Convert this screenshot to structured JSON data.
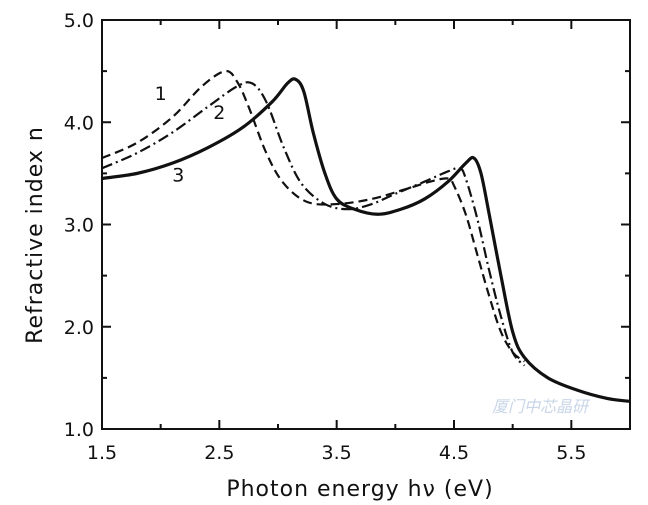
{
  "chart_data": {
    "type": "line",
    "title": "",
    "xlabel": "Photon energy hν (eV)",
    "ylabel": "Refractive index n",
    "xlim": [
      1.5,
      6.0
    ],
    "ylim": [
      1.0,
      5.0
    ],
    "x_ticks": [
      1.5,
      2.5,
      3.5,
      4.5,
      5.5
    ],
    "x_tick_labels": [
      "1.5",
      "2.5",
      "3.5",
      "4.5",
      "5.5"
    ],
    "y_ticks": [
      1.0,
      2.0,
      3.0,
      4.0,
      5.0
    ],
    "y_tick_labels": [
      "1.0",
      "2.0",
      "3.0",
      "4.0",
      "5.0"
    ],
    "grid": false,
    "series": [
      {
        "name": "1",
        "style": "dashed",
        "points": [
          [
            1.5,
            3.65
          ],
          [
            1.8,
            3.8
          ],
          [
            2.1,
            4.05
          ],
          [
            2.35,
            4.35
          ],
          [
            2.55,
            4.5
          ],
          [
            2.65,
            4.4
          ],
          [
            2.75,
            4.15
          ],
          [
            2.9,
            3.7
          ],
          [
            3.05,
            3.4
          ],
          [
            3.25,
            3.22
          ],
          [
            3.5,
            3.2
          ],
          [
            3.8,
            3.25
          ],
          [
            4.1,
            3.35
          ],
          [
            4.3,
            3.42
          ],
          [
            4.45,
            3.45
          ],
          [
            4.5,
            3.38
          ],
          [
            4.6,
            3.1
          ],
          [
            4.7,
            2.7
          ],
          [
            4.8,
            2.3
          ],
          [
            4.9,
            1.95
          ],
          [
            5.0,
            1.75
          ],
          [
            5.1,
            1.66
          ]
        ]
      },
      {
        "name": "2",
        "style": "dash-dot",
        "points": [
          [
            1.5,
            3.55
          ],
          [
            1.8,
            3.7
          ],
          [
            2.1,
            3.9
          ],
          [
            2.4,
            4.15
          ],
          [
            2.65,
            4.35
          ],
          [
            2.78,
            4.38
          ],
          [
            2.9,
            4.2
          ],
          [
            3.05,
            3.75
          ],
          [
            3.2,
            3.4
          ],
          [
            3.4,
            3.2
          ],
          [
            3.6,
            3.15
          ],
          [
            3.8,
            3.2
          ],
          [
            4.0,
            3.3
          ],
          [
            4.25,
            3.42
          ],
          [
            4.45,
            3.52
          ],
          [
            4.55,
            3.55
          ],
          [
            4.6,
            3.45
          ],
          [
            4.7,
            3.05
          ],
          [
            4.8,
            2.55
          ],
          [
            4.9,
            2.1
          ],
          [
            5.0,
            1.75
          ],
          [
            5.1,
            1.62
          ]
        ]
      },
      {
        "name": "3",
        "style": "solid",
        "points": [
          [
            1.5,
            3.45
          ],
          [
            1.8,
            3.5
          ],
          [
            2.1,
            3.6
          ],
          [
            2.4,
            3.75
          ],
          [
            2.7,
            3.95
          ],
          [
            2.95,
            4.2
          ],
          [
            3.08,
            4.38
          ],
          [
            3.15,
            4.42
          ],
          [
            3.22,
            4.3
          ],
          [
            3.3,
            3.9
          ],
          [
            3.4,
            3.5
          ],
          [
            3.5,
            3.25
          ],
          [
            3.65,
            3.15
          ],
          [
            3.85,
            3.1
          ],
          [
            4.05,
            3.15
          ],
          [
            4.25,
            3.25
          ],
          [
            4.45,
            3.42
          ],
          [
            4.6,
            3.6
          ],
          [
            4.67,
            3.65
          ],
          [
            4.73,
            3.5
          ],
          [
            4.8,
            3.1
          ],
          [
            4.9,
            2.5
          ],
          [
            5.0,
            1.95
          ],
          [
            5.1,
            1.7
          ],
          [
            5.3,
            1.5
          ],
          [
            5.55,
            1.38
          ],
          [
            5.8,
            1.3
          ],
          [
            6.0,
            1.27
          ]
        ]
      }
    ],
    "annotations": [
      {
        "text": "1",
        "x": 2.0,
        "y": 4.22
      },
      {
        "text": "2",
        "x": 2.5,
        "y": 4.03
      },
      {
        "text": "3",
        "x": 2.15,
        "y": 3.42
      }
    ]
  },
  "watermark": {
    "text": "厦门中芯晶研"
  }
}
